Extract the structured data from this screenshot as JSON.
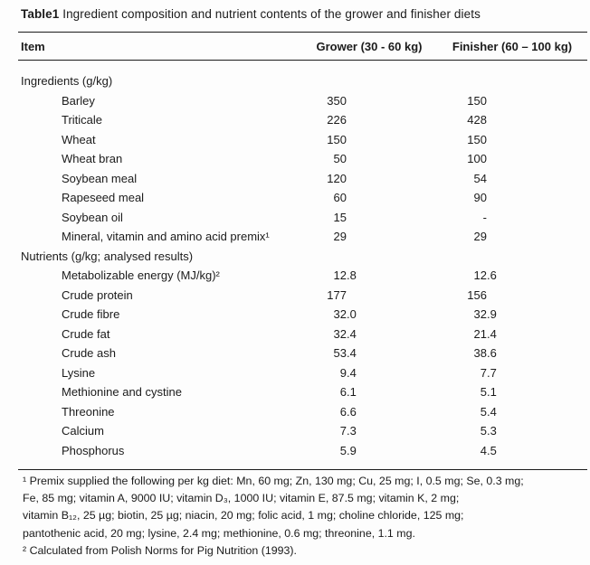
{
  "colors": {
    "background": "#fdfdfd",
    "text": "#1b1b1b",
    "rule": "#1b1b1b"
  },
  "title": {
    "bold": "Table1",
    "rest": " Ingredient composition and nutrient contents of the grower and finisher diets"
  },
  "table": {
    "columns": [
      "Item",
      "Grower (30 - 60 kg)",
      "Finisher (60 – 100 kg)"
    ],
    "rows": [
      {
        "label": "Ingredients (g/kg)",
        "indent": 0,
        "grower": "",
        "finisher": ""
      },
      {
        "label": "Barley",
        "indent": 1,
        "grower": "350",
        "finisher": "150"
      },
      {
        "label": "Triticale",
        "indent": 1,
        "grower": "226",
        "finisher": "428"
      },
      {
        "label": "Wheat",
        "indent": 1,
        "grower": "150",
        "finisher": "150"
      },
      {
        "label": "Wheat bran",
        "indent": 1,
        "grower": "50",
        "finisher": "100"
      },
      {
        "label": "Soybean meal",
        "indent": 1,
        "grower": "120",
        "finisher": "54"
      },
      {
        "label": "Rapeseed meal",
        "indent": 1,
        "grower": "60",
        "finisher": "90"
      },
      {
        "label": "Soybean oil",
        "indent": 1,
        "grower": "15",
        "finisher": "-"
      },
      {
        "label": "Mineral, vitamin and amino acid premix¹",
        "indent": 1,
        "grower": "29",
        "finisher": "29"
      },
      {
        "label": "Nutrients (g/kg; analysed results)",
        "indent": 0,
        "grower": "",
        "finisher": ""
      },
      {
        "label": "Metabolizable energy (MJ/kg)²",
        "indent": 1,
        "grower": "12.8",
        "finisher": "12.6"
      },
      {
        "label": "Crude protein",
        "indent": 1,
        "grower": "177",
        "finisher": "156"
      },
      {
        "label": "Crude fibre",
        "indent": 1,
        "grower": "32.0",
        "finisher": "32.9"
      },
      {
        "label": "Crude fat",
        "indent": 1,
        "grower": "32.4",
        "finisher": "21.4"
      },
      {
        "label": "Crude ash",
        "indent": 1,
        "grower": "53.4",
        "finisher": "38.6"
      },
      {
        "label": "Lysine",
        "indent": 1,
        "grower": "9.4",
        "finisher": "7.7"
      },
      {
        "label": "Methionine and cystine",
        "indent": 1,
        "grower": "6.1",
        "finisher": "5.1"
      },
      {
        "label": "Threonine",
        "indent": 1,
        "grower": "6.6",
        "finisher": "5.4"
      },
      {
        "label": "Calcium",
        "indent": 1,
        "grower": "7.3",
        "finisher": "5.3"
      },
      {
        "label": "Phosphorus",
        "indent": 1,
        "grower": "5.9",
        "finisher": "4.5"
      }
    ]
  },
  "footnotes": {
    "lines": [
      "¹ Premix supplied the following per kg diet: Mn, 60 mg; Zn, 130 mg; Cu, 25 mg; I, 0.5 mg; Se, 0.3 mg;",
      "Fe, 85 mg; vitamin A, 9000 IU; vitamin D₃, 1000 IU; vitamin E, 87.5 mg; vitamin K, 2 mg;",
      "vitamin B₁₂, 25 µg; biotin, 25 µg; niacin, 20 mg; folic acid, 1 mg; choline chloride, 125 mg;",
      "pantothenic acid, 20 mg; lysine, 2.4 mg; methionine, 0.6 mg; threonine, 1.1 mg.",
      "² Calculated from Polish Norms for Pig Nutrition (1993)."
    ]
  }
}
